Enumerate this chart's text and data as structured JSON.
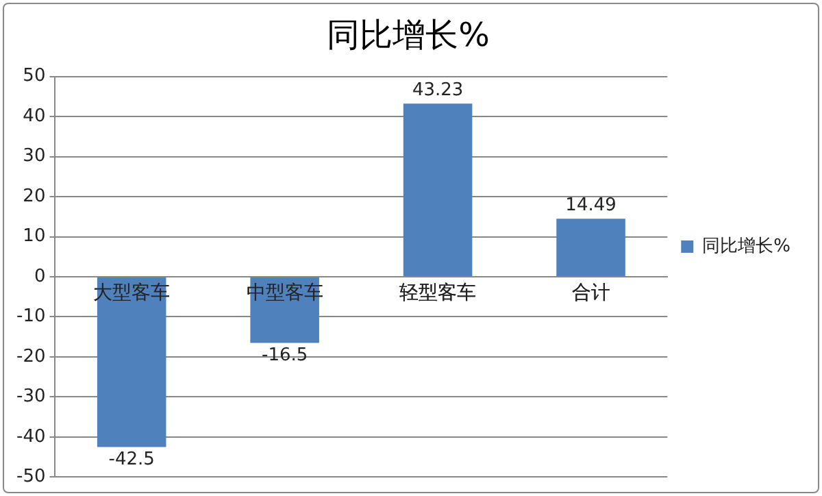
{
  "chart_data": {
    "type": "bar",
    "title": "同比增长%",
    "categories": [
      "大型客车",
      "中型客车",
      "轻型客车",
      "合计"
    ],
    "series": [
      {
        "name": "同比增长%",
        "color": "#4f81bd",
        "values": [
          -42.5,
          -16.5,
          43.23,
          14.49
        ]
      }
    ],
    "ylim": [
      -50,
      50
    ],
    "yticks": [
      -50,
      -40,
      -30,
      -20,
      -10,
      0,
      10,
      20,
      30,
      40,
      50
    ],
    "grid": "y",
    "legend": "right",
    "data_labels": true
  }
}
